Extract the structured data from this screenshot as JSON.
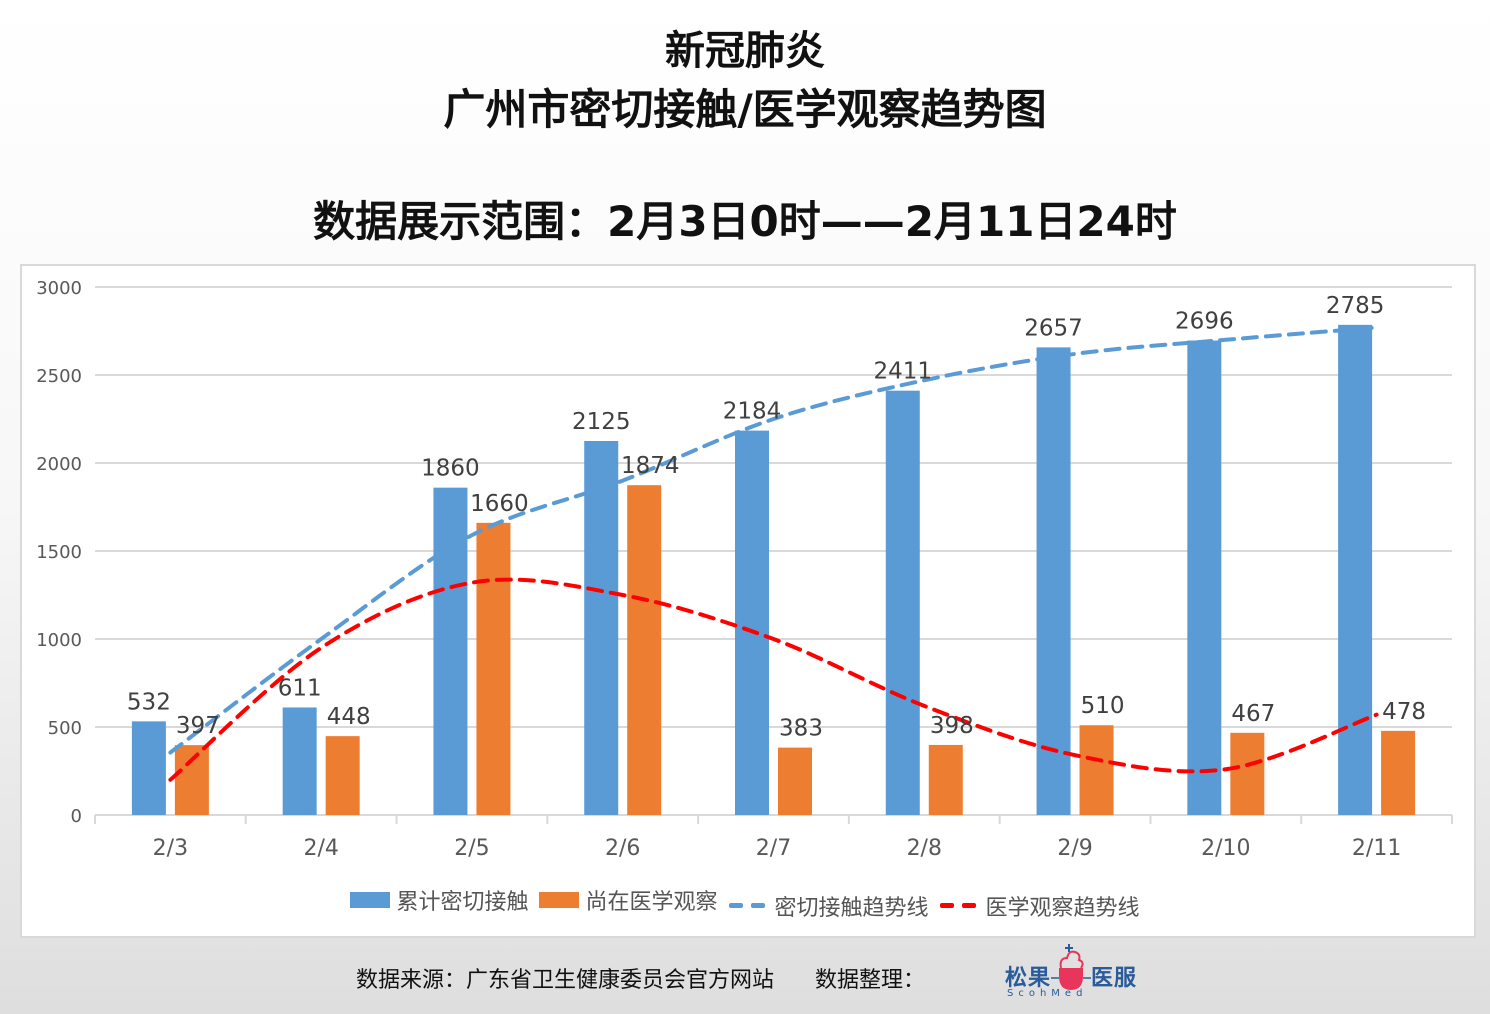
{
  "titles": {
    "line1": "新冠肺炎",
    "line2": "广州市密切接触/医学观察趋势图",
    "line3": "数据展示范围：2月3日0时——2月11日24时"
  },
  "footer": {
    "source": "数据来源：广东省卫生健康委员会官方网站",
    "organizer": "数据整理：",
    "logo_cn": "松果",
    "logo_cn2": "医服",
    "logo_en": "ScohMed"
  },
  "colors": {
    "cumulative": "#5b9bd5",
    "observing": "#ed7d31",
    "cumulative_trend": "#5b9bd5",
    "observing_trend": "#ff0000",
    "grid": "#d9d9d9",
    "text": "#404040"
  },
  "chart_data": {
    "type": "bar",
    "title": "新冠肺炎 广州市密切接触/医学观察趋势图",
    "xlabel": "",
    "ylabel": "",
    "ylim": [
      0,
      3000
    ],
    "yticks": [
      0,
      500,
      1000,
      1500,
      2000,
      2500,
      3000
    ],
    "grid": true,
    "legend_position": "bottom",
    "categories": [
      "2/3",
      "2/4",
      "2/5",
      "2/6",
      "2/7",
      "2/8",
      "2/9",
      "2/10",
      "2/11"
    ],
    "series": [
      {
        "name": "累计密切接触",
        "kind": "bar",
        "values": [
          532,
          611,
          1860,
          2125,
          2184,
          2411,
          2657,
          2696,
          2785
        ]
      },
      {
        "name": "尚在医学观察",
        "kind": "bar",
        "values": [
          397,
          448,
          1660,
          1874,
          383,
          398,
          510,
          467,
          478
        ]
      },
      {
        "name": "密切接触趋势线",
        "kind": "trendline",
        "values": [
          355,
          1000,
          1590,
          1900,
          2250,
          2470,
          2620,
          2700,
          2770
        ]
      },
      {
        "name": "医学观察趋势线",
        "kind": "trendline",
        "values": [
          200,
          950,
          1320,
          1250,
          1000,
          620,
          340,
          260,
          570
        ]
      }
    ]
  }
}
